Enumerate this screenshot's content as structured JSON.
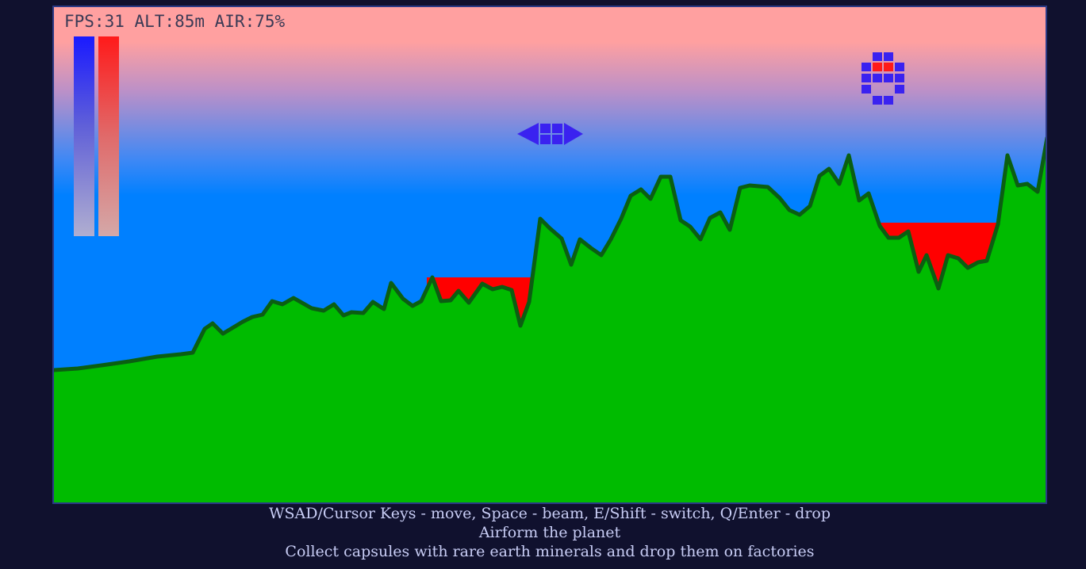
{
  "hud": {
    "status": "FPS:31 ALT:85m AIR:75%"
  },
  "gauges": {
    "air_color": "#1a1aff",
    "heat_color": "#ff1a1a"
  },
  "colors": {
    "sky_top": "#ffa0a0",
    "sky_bottom": "#0080ff",
    "ground": "#00bb00",
    "ground_outline": "#0b5e12",
    "lava": "#ff0000",
    "ship": "#3a22f0",
    "capsule_core": "#ff1a1a"
  },
  "instructions": {
    "line1": "WSAD/Cursor Keys - move, Space - beam, E/Shift - switch, Q/Enter - drop",
    "line2": "Airform the planet",
    "line3": "Collect capsules with rare earth minerals and drop them on factories"
  }
}
